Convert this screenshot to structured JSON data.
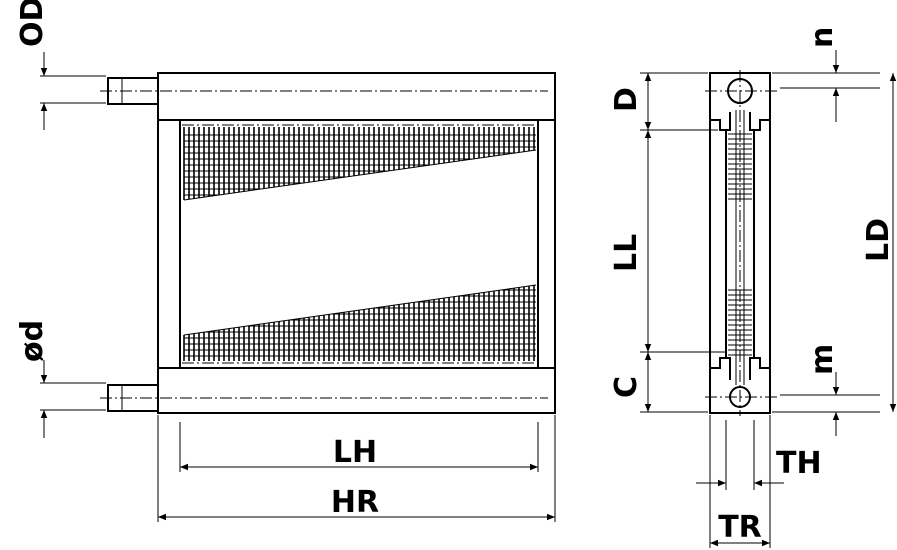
{
  "labels": {
    "od": "OD",
    "phi_d": "ød",
    "lh": "LH",
    "hr": "HR",
    "d": "D",
    "ll": "LL",
    "c": "C",
    "n": "n",
    "m": "m",
    "ld": "LD",
    "th": "TH",
    "tr": "TR"
  }
}
